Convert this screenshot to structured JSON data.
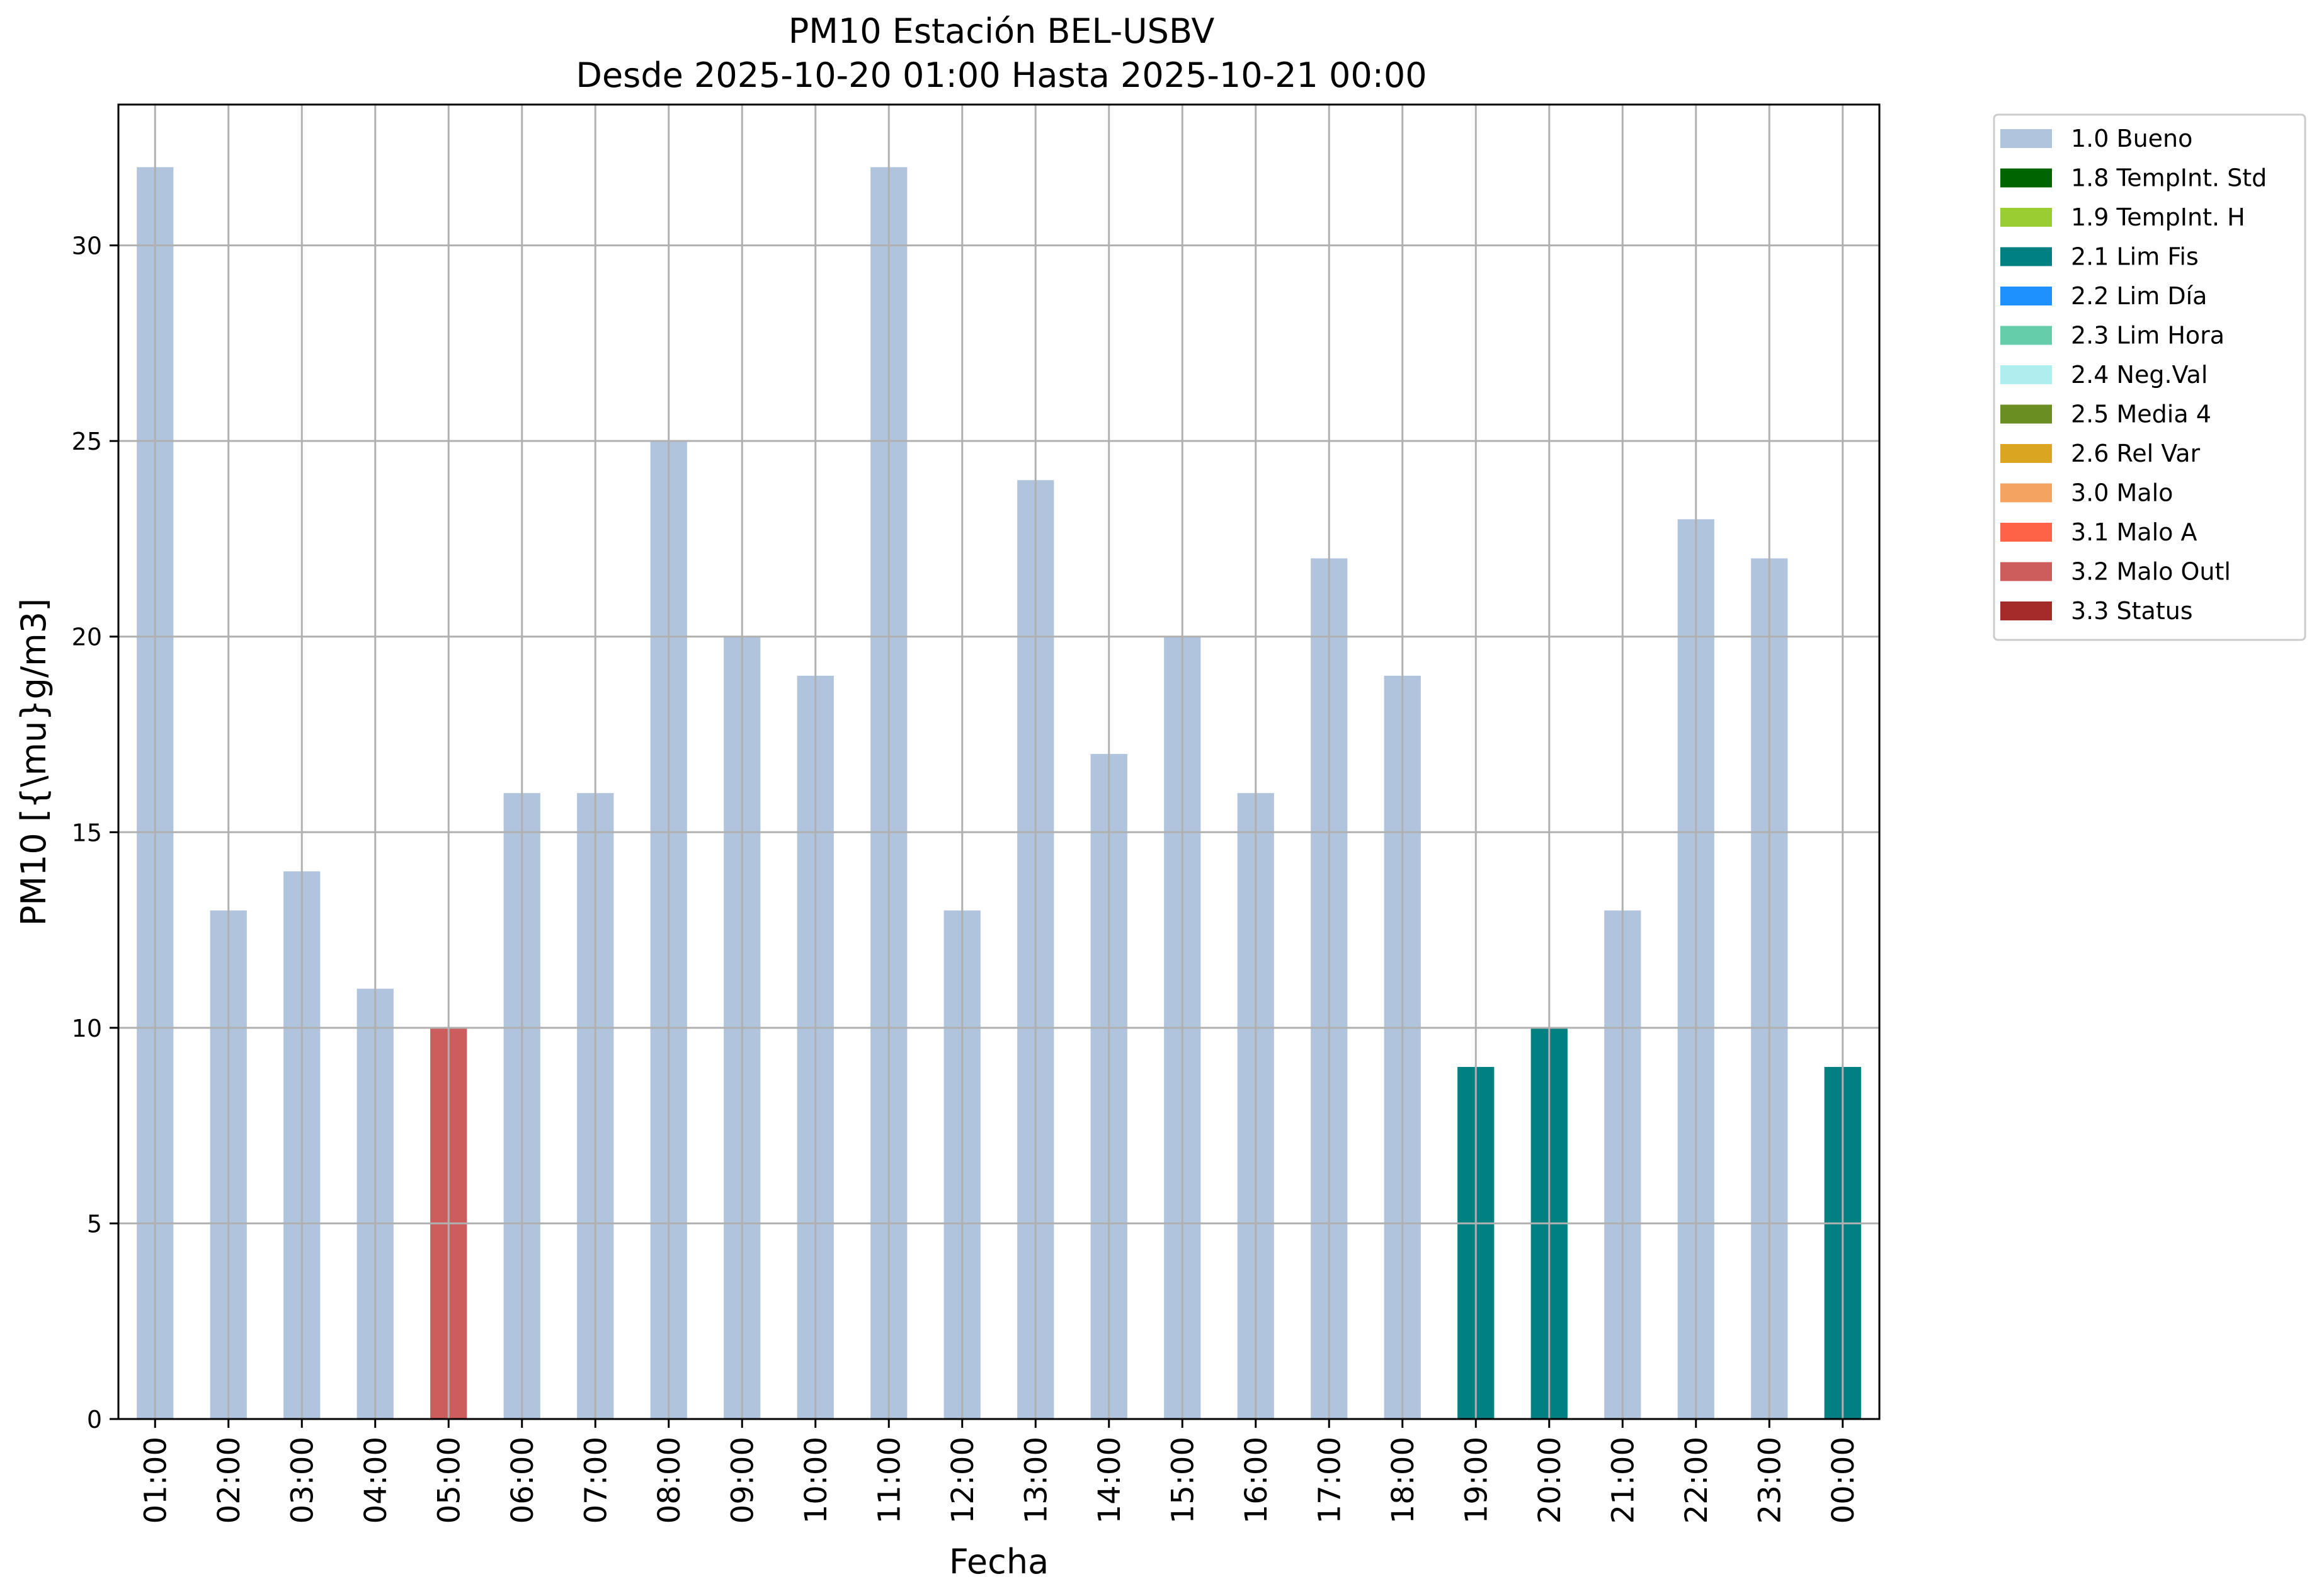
{
  "chart_data": {
    "type": "bar",
    "title": "PM10 Estación BEL-USBV",
    "subtitle": "Desde 2025-10-20 01:00 Hasta 2025-10-21 00:00",
    "xlabel": "Fecha",
    "ylabel": "PM10 [{\\mu}g/m3]",
    "ylim": [
      0,
      33.6
    ],
    "yticks": [
      0,
      5,
      10,
      15,
      20,
      25,
      30
    ],
    "grid": true,
    "legend_position": "outside-top-right",
    "categories": [
      "01:00",
      "02:00",
      "03:00",
      "04:00",
      "05:00",
      "06:00",
      "07:00",
      "08:00",
      "09:00",
      "10:00",
      "11:00",
      "12:00",
      "13:00",
      "14:00",
      "15:00",
      "16:00",
      "17:00",
      "18:00",
      "19:00",
      "20:00",
      "21:00",
      "22:00",
      "23:00",
      "00:00"
    ],
    "values": [
      32,
      13,
      14,
      11,
      10,
      16,
      16,
      25,
      20,
      19,
      32,
      13,
      24,
      17,
      20,
      16,
      22,
      19,
      9,
      10,
      13,
      23,
      22,
      9
    ],
    "flags": [
      "1.0 Bueno",
      "1.0 Bueno",
      "1.0 Bueno",
      "1.0 Bueno",
      "3.2 Malo Outl",
      "1.0 Bueno",
      "1.0 Bueno",
      "1.0 Bueno",
      "1.0 Bueno",
      "1.0 Bueno",
      "1.0 Bueno",
      "1.0 Bueno",
      "1.0 Bueno",
      "1.0 Bueno",
      "1.0 Bueno",
      "1.0 Bueno",
      "1.0 Bueno",
      "1.0 Bueno",
      "2.1 Lim Fis",
      "2.1 Lim Fis",
      "1.0 Bueno",
      "1.0 Bueno",
      "1.0 Bueno",
      "2.1 Lim Fis"
    ],
    "legend": [
      {
        "label": "1.0 Bueno",
        "color": "#b0c4de"
      },
      {
        "label": "1.8 TempInt. Std",
        "color": "#006400"
      },
      {
        "label": "1.9 TempInt. H",
        "color": "#9acd32"
      },
      {
        "label": "2.1 Lim Fis",
        "color": "#008080"
      },
      {
        "label": "2.2 Lim Día",
        "color": "#1e90ff"
      },
      {
        "label": "2.3 Lim Hora",
        "color": "#66cdaa"
      },
      {
        "label": "2.4 Neg.Val",
        "color": "#afeeee"
      },
      {
        "label": "2.5 Media 4",
        "color": "#6b8e23"
      },
      {
        "label": "2.6 Rel Var",
        "color": "#daa520"
      },
      {
        "label": "3.0 Malo",
        "color": "#f4a460"
      },
      {
        "label": "3.1 Malo A",
        "color": "#ff6347"
      },
      {
        "label": "3.2 Malo Outl",
        "color": "#cd5c5c"
      },
      {
        "label": "3.3 Status",
        "color": "#a52a2a"
      }
    ],
    "colors": {
      "grid": "#b0b0b0",
      "axes": "#000000"
    }
  }
}
